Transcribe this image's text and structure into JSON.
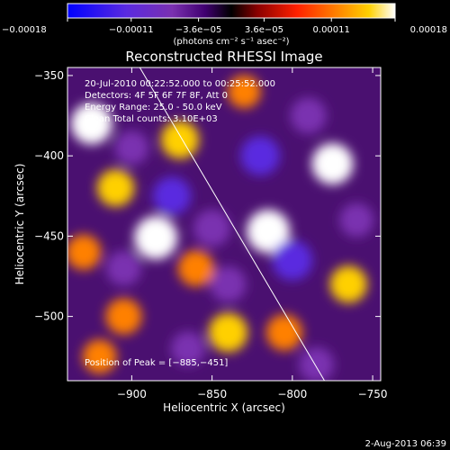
{
  "chart_data": {
    "type": "heatmap",
    "title": "Reconstructed RHESSI Image",
    "xlabel": "Heliocentric X (arcsec)",
    "ylabel": "Heliocentric Y (arcsec)",
    "xlim": [
      -940,
      -745
    ],
    "ylim": [
      -540,
      -345
    ],
    "x_ticks": [
      -900,
      -850,
      -800,
      -750
    ],
    "x_tick_labels": [
      "−900",
      "−850",
      "−800",
      "−750"
    ],
    "y_ticks": [
      -350,
      -400,
      -450,
      -500
    ],
    "y_tick_labels": [
      "−350",
      "−400",
      "−450",
      "−500"
    ],
    "colorbar": {
      "range": [
        -0.00018,
        0.00018
      ],
      "ticks": [
        -0.00018,
        -0.00011,
        -3.6e-05,
        3.6e-05,
        0.00011,
        0.00018
      ],
      "tick_labels": [
        "−0.00018",
        "−0.00011",
        "−3.6e−05",
        "3.6e−05",
        "0.00011",
        "0.00018"
      ],
      "units": "(photons cm⁻² s⁻¹ asec⁻²)",
      "colormap": [
        "#0000ff",
        "#5a2ae0",
        "#7a30b0",
        "#400070",
        "#000000",
        "#8a0000",
        "#ff2000",
        "#ff8000",
        "#ffd000",
        "#ffffff"
      ]
    },
    "annotations": [
      "20-Jul-2010 00:22:52.000 to 00:25:52.000",
      "Detectors: 4F 5F 6F 7F 8F, Att 0",
      "Energy Range: 25.0 - 50.0 keV",
      "Clean     Total counts: 3.10E+03"
    ],
    "peak_label": "Position of Peak = [−885,−451]",
    "peak": {
      "x": -885,
      "y": -451
    },
    "limb_line": [
      {
        "x": -895,
        "y": -345
      },
      {
        "x": -780,
        "y": -540
      }
    ],
    "intensity_blobs": [
      {
        "x": -925,
        "y": -380,
        "v": 0.00016
      },
      {
        "x": -910,
        "y": -420,
        "v": 0.00012
      },
      {
        "x": -930,
        "y": -460,
        "v": 0.0001
      },
      {
        "x": -905,
        "y": -500,
        "v": 0.00011
      },
      {
        "x": -885,
        "y": -451,
        "v": 0.00018
      },
      {
        "x": -870,
        "y": -390,
        "v": 0.00013
      },
      {
        "x": -860,
        "y": -470,
        "v": 0.00011
      },
      {
        "x": -840,
        "y": -510,
        "v": 0.00014
      },
      {
        "x": -815,
        "y": -447,
        "v": 0.00018
      },
      {
        "x": -805,
        "y": -510,
        "v": 0.00011
      },
      {
        "x": -775,
        "y": -405,
        "v": 0.00016
      },
      {
        "x": -765,
        "y": -480,
        "v": 0.00012
      },
      {
        "x": -830,
        "y": -360,
        "v": 8e-05
      },
      {
        "x": -920,
        "y": -525,
        "v": 9e-05
      },
      {
        "x": -900,
        "y": -395,
        "v": -9e-05
      },
      {
        "x": -875,
        "y": -425,
        "v": -0.00013
      },
      {
        "x": -905,
        "y": -470,
        "v": -0.0001
      },
      {
        "x": -850,
        "y": -445,
        "v": -0.00012
      },
      {
        "x": -820,
        "y": -400,
        "v": -0.00014
      },
      {
        "x": -790,
        "y": -375,
        "v": -0.00011
      },
      {
        "x": -800,
        "y": -465,
        "v": -0.00015
      },
      {
        "x": -785,
        "y": -530,
        "v": -0.0001
      },
      {
        "x": -840,
        "y": -480,
        "v": -0.00011
      },
      {
        "x": -865,
        "y": -520,
        "v": -9e-05
      },
      {
        "x": -760,
        "y": -440,
        "v": -9e-05
      }
    ]
  },
  "footer": {
    "date": "2-Aug-2013 06:39"
  }
}
